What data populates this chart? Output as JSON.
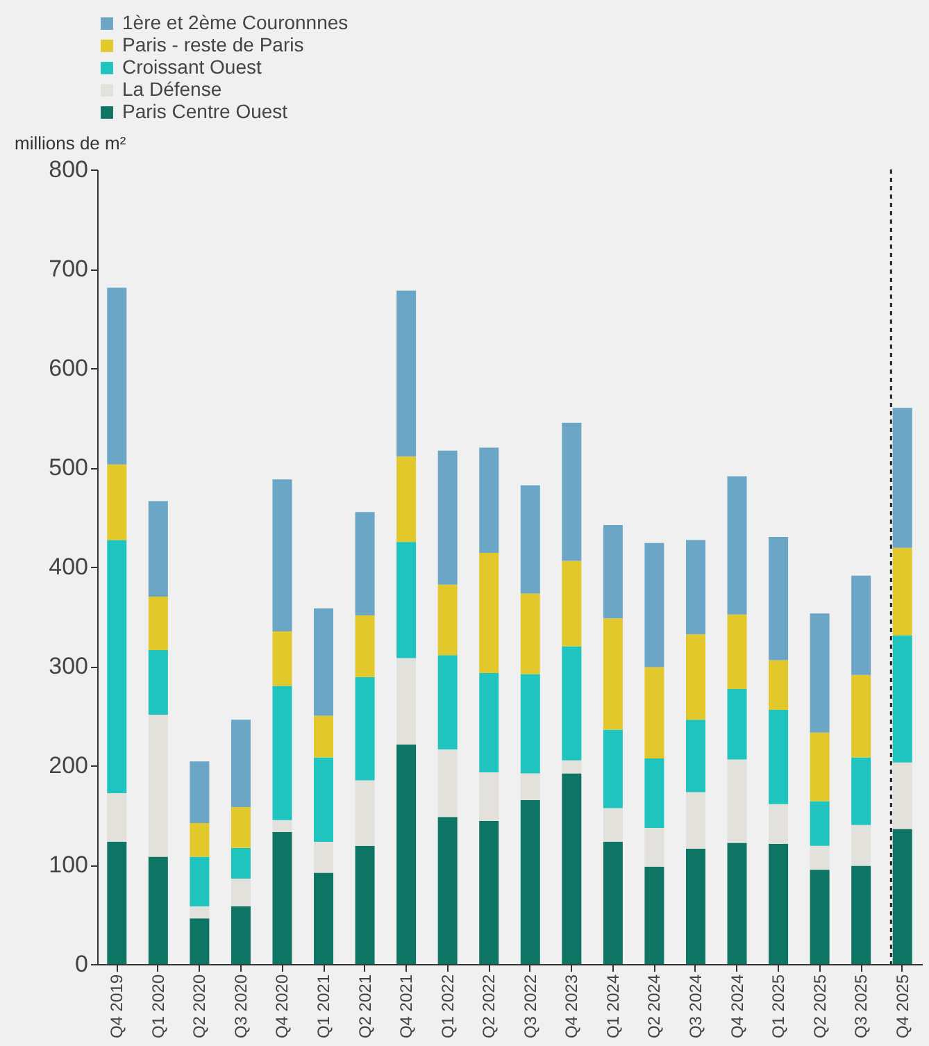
{
  "chart_data": {
    "type": "bar",
    "stacked": true,
    "ylabel": "millions de m²",
    "categories": [
      "Q4 2019",
      "Q1 2020",
      "Q2 2020",
      "Q3 2020",
      "Q4 2020",
      "Q1 2021",
      "Q2 2021",
      "Q4 2021",
      "Q1 2022",
      "Q2 2022",
      "Q3 2022",
      "Q4 2023",
      "Q1 2024",
      "Q2 2024",
      "Q3 2024",
      "Q4 2024",
      "Q1 2025",
      "Q2 2025",
      "Q3 2025",
      "Q4 2025"
    ],
    "series": [
      {
        "name": "Paris Centre Ouest",
        "color": "#0e7463",
        "values": [
          123,
          108,
          46,
          58,
          133,
          92,
          119,
          221,
          148,
          144,
          165,
          192,
          123,
          98,
          116,
          122,
          121,
          95,
          99,
          136
        ]
      },
      {
        "name": "La Défense",
        "color": "#e3e1dc",
        "values": [
          49,
          143,
          12,
          28,
          12,
          31,
          66,
          87,
          68,
          49,
          27,
          13,
          34,
          39,
          57,
          84,
          40,
          24,
          41,
          67
        ]
      },
      {
        "name": "Croissant Ouest",
        "color": "#1fc4bf",
        "values": [
          255,
          65,
          50,
          31,
          135,
          85,
          104,
          117,
          95,
          100,
          100,
          115,
          79,
          70,
          73,
          71,
          95,
          45,
          68,
          128
        ]
      },
      {
        "name": "Paris - reste de Paris",
        "color": "#e3c82b",
        "values": [
          76,
          54,
          34,
          41,
          55,
          42,
          62,
          86,
          71,
          121,
          81,
          86,
          112,
          92,
          86,
          75,
          50,
          69,
          83,
          88
        ]
      },
      {
        "name": "1ère et 2ème Couronnnes",
        "color": "#6ba6c6",
        "values": [
          178,
          96,
          62,
          88,
          153,
          108,
          104,
          167,
          135,
          106,
          109,
          139,
          94,
          125,
          95,
          139,
          124,
          120,
          100,
          141
        ]
      }
    ],
    "ylim": [
      0,
      800
    ],
    "yticks": [
      0,
      100,
      200,
      300,
      400,
      500,
      600,
      700,
      800
    ],
    "grid": false,
    "legend": "top",
    "ref_lines": [
      {
        "axis": "x",
        "value": "Q4 2025",
        "line_style": "dashed",
        "color": "#222222"
      }
    ]
  }
}
